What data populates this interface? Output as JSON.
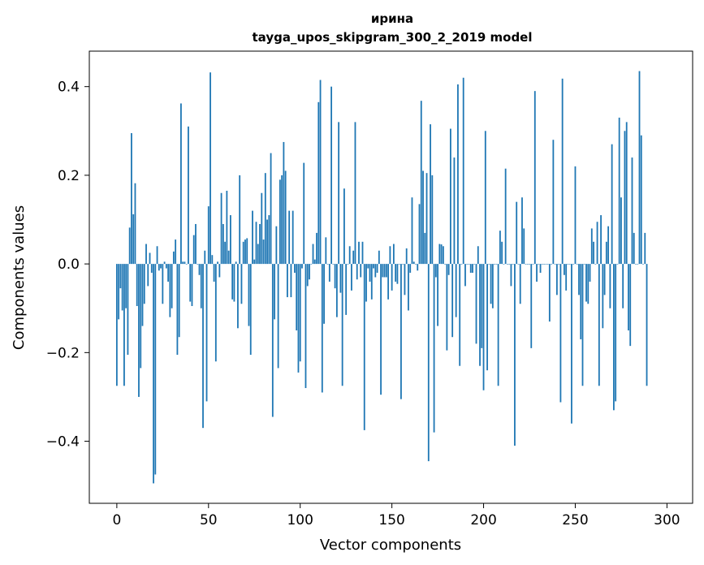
{
  "chart_data": {
    "type": "bar",
    "title": "ирина",
    "subtitle": "tayga_upos_skipgram_300_2_2019 model",
    "xlabel": "Vector components",
    "ylabel": "Components values",
    "xlim": [
      -15,
      314
    ],
    "ylim": [
      -0.54,
      0.48
    ],
    "xticks": [
      0,
      50,
      100,
      150,
      200,
      250,
      300
    ],
    "yticks": [
      -0.4,
      -0.2,
      0.0,
      0.2,
      0.4
    ],
    "ytick_labels": [
      "−0.4",
      "−0.2",
      "0.0",
      "0.2",
      "0.4"
    ],
    "grid": false,
    "bar_color": "#1f77b4",
    "values": [
      -0.275,
      -0.125,
      -0.055,
      -0.105,
      -0.275,
      -0.1,
      -0.205,
      0.082,
      0.295,
      0.112,
      0.182,
      -0.095,
      -0.3,
      -0.235,
      -0.14,
      -0.09,
      0.045,
      -0.05,
      0.025,
      -0.02,
      -0.495,
      -0.475,
      0.04,
      -0.015,
      -0.01,
      -0.09,
      0.005,
      -0.01,
      -0.04,
      -0.12,
      -0.1,
      0.028,
      0.055,
      -0.205,
      -0.165,
      0.362,
      0.005,
      0.005,
      0.0,
      0.31,
      -0.085,
      -0.095,
      0.065,
      0.09,
      0.0,
      -0.025,
      -0.1,
      -0.37,
      0.03,
      -0.31,
      0.13,
      0.432,
      0.02,
      -0.04,
      -0.22,
      0.005,
      -0.03,
      0.16,
      0.09,
      0.05,
      0.165,
      0.03,
      0.11,
      -0.08,
      -0.085,
      0.005,
      -0.145,
      0.2,
      -0.09,
      0.05,
      0.055,
      0.058,
      -0.14,
      -0.205,
      0.12,
      0.01,
      0.095,
      0.045,
      0.09,
      0.16,
      0.055,
      0.205,
      0.1,
      0.11,
      0.25,
      -0.345,
      -0.125,
      0.085,
      -0.235,
      0.19,
      0.2,
      0.275,
      0.21,
      -0.075,
      0.12,
      -0.075,
      0.12,
      -0.02,
      -0.15,
      -0.245,
      -0.22,
      -0.01,
      0.228,
      -0.28,
      -0.05,
      -0.035,
      0.0,
      0.045,
      0.01,
      0.07,
      0.365,
      0.415,
      -0.29,
      -0.135,
      0.06,
      0.0,
      -0.04,
      0.4,
      0.0,
      -0.055,
      -0.12,
      0.32,
      -0.065,
      -0.275,
      0.17,
      -0.115,
      0.0,
      0.04,
      -0.06,
      0.03,
      0.32,
      -0.035,
      0.05,
      -0.03,
      0.05,
      -0.375,
      -0.085,
      -0.01,
      -0.04,
      -0.08,
      -0.01,
      -0.03,
      -0.02,
      0.03,
      -0.295,
      -0.03,
      -0.03,
      -0.03,
      -0.08,
      0.04,
      -0.06,
      0.045,
      -0.04,
      -0.045,
      0.0,
      -0.305,
      0.0,
      -0.07,
      0.035,
      -0.105,
      -0.02,
      0.15,
      0.005,
      0.0,
      -0.015,
      0.135,
      0.368,
      0.21,
      0.07,
      0.205,
      -0.445,
      0.315,
      0.2,
      -0.38,
      -0.03,
      -0.14,
      0.045,
      0.044,
      0.04,
      0.0,
      -0.195,
      -0.025,
      0.305,
      -0.165,
      0.24,
      -0.12,
      0.405,
      -0.23,
      0.0,
      0.42,
      -0.05,
      0.0,
      0.0,
      -0.02,
      -0.02,
      0.0,
      -0.18,
      0.04,
      -0.23,
      -0.19,
      -0.285,
      0.3,
      -0.24,
      0.0,
      -0.09,
      -0.1,
      0.0,
      0.0,
      -0.275,
      0.075,
      0.05,
      0.0,
      0.215,
      0.0,
      0.0,
      -0.05,
      0.0,
      -0.41,
      0.14,
      0.0,
      -0.09,
      0.15,
      0.08,
      0.0,
      0.0,
      0.0,
      -0.19,
      0.0,
      0.39,
      -0.04,
      0.0,
      -0.02,
      0.0,
      0.0,
      0.0,
      0.0,
      -0.13,
      0.0,
      0.28,
      0.0,
      -0.07,
      0.0,
      -0.312,
      0.418,
      -0.025,
      -0.06,
      0.0,
      0.0,
      -0.36,
      0.0,
      0.22,
      0.0,
      -0.07,
      -0.17,
      -0.275,
      0.0,
      -0.085,
      -0.09,
      -0.04,
      0.08,
      0.05,
      0.0,
      0.095,
      -0.275,
      0.11,
      -0.145,
      -0.07,
      0.05,
      0.085,
      -0.1,
      0.27,
      -0.33,
      -0.31,
      0.0,
      0.33,
      0.15,
      -0.1,
      0.3,
      0.32,
      -0.15,
      -0.185,
      0.24,
      0.07,
      0.0,
      0.0,
      0.435,
      0.29,
      0.0,
      0.07,
      -0.275
    ]
  }
}
